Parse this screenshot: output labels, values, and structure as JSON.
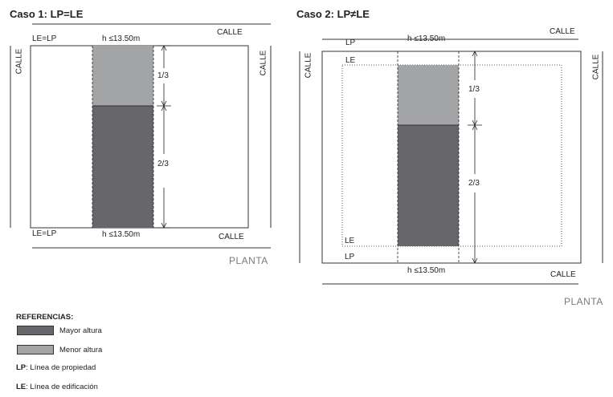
{
  "case1": {
    "title": "Caso 1: LP=LE",
    "street_top": "CALLE",
    "street_bottom": "CALLE",
    "street_left": "CALLE",
    "street_right": "CALLE",
    "label_top_left": "LE=LP",
    "label_bottom_left": "LE=LP",
    "width_top": "h ≤13.50m",
    "width_bottom": "h ≤13.50m",
    "fraction_upper": "1/3",
    "fraction_lower": "2/3",
    "plan_label": "PLANTA"
  },
  "case2": {
    "title": "Caso 2: LP≠LE",
    "street_top": "CALLE",
    "street_bottom": "CALLE",
    "street_left": "CALLE",
    "street_right": "CALLE",
    "label_lp_top": "LP",
    "label_le_top": "LE",
    "label_le_bottom": "LE",
    "label_lp_bottom": "LP",
    "width_top": "h ≤13.50m",
    "width_bottom": "h ≤13.50m",
    "fraction_upper": "1/3",
    "fraction_lower": "2/3",
    "plan_label": "PLANTA"
  },
  "references": {
    "title": "REFERENCIAS:",
    "items": [
      {
        "label": "Mayor altura",
        "color": "#66666b"
      },
      {
        "label": "Menor altura",
        "color": "#a3a4a6"
      }
    ],
    "lp_abbr": "LP",
    "lp_text": ": Línea de propiedad",
    "le_abbr": "LE",
    "le_text": ": Línea de edificación"
  },
  "colors": {
    "mayor_altura": "#66666b",
    "menor_altura": "#a3a4a6",
    "line": "#333333"
  }
}
